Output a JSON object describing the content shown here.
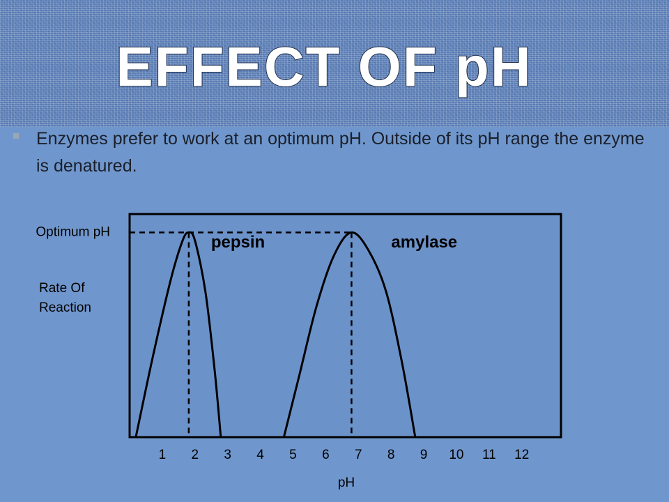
{
  "slide": {
    "title": "EFFECT OF pH",
    "bullet": "Enzymes prefer to work at an optimum pH. Outside of its pH range the enzyme is denatured."
  },
  "chart_data": {
    "type": "line",
    "xlabel": "pH",
    "ylabel": "Rate Of Reaction",
    "xlim": [
      0,
      13.2
    ],
    "xticks": [
      1,
      2,
      3,
      4,
      5,
      6,
      7,
      8,
      9,
      10,
      11,
      12
    ],
    "ylim": [
      0,
      1.09
    ],
    "yticks": [
      {
        "value": 1,
        "label": "Optimum pH"
      }
    ],
    "series": [
      {
        "name": "pepsin",
        "color": "#000000",
        "x": [
          0.19,
          0.72,
          1.26,
          1.62,
          1.81,
          2.0,
          2.32,
          2.6,
          2.79
        ],
        "values": [
          0,
          0.4,
          0.77,
          0.96,
          1,
          0.96,
          0.71,
          0.33,
          0
        ]
      },
      {
        "name": "amylase",
        "color": "#000000",
        "x": [
          4.72,
          5.19,
          5.72,
          6.26,
          6.79,
          7.32,
          7.85,
          8.34,
          8.74
        ],
        "values": [
          0,
          0.3,
          0.64,
          0.89,
          1,
          0.91,
          0.71,
          0.36,
          0
        ]
      }
    ]
  }
}
